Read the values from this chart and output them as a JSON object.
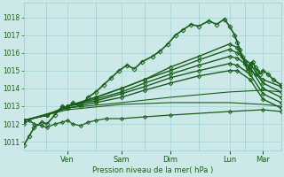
{
  "bg_color": "#cce8e8",
  "grid_color": "#99cccc",
  "line_color": "#1a5c1a",
  "marker_color": "#1a5c1a",
  "ylabel": "Pression niveau de la mer( hPa )",
  "ylim": [
    1010.5,
    1018.8
  ],
  "yticks": [
    1011,
    1012,
    1013,
    1014,
    1015,
    1016,
    1017,
    1018
  ],
  "day_labels": [
    "Ven",
    "Sam",
    "Dim",
    "Lun",
    "Mar"
  ],
  "day_positions": [
    0.17,
    0.38,
    0.57,
    0.8,
    0.93
  ],
  "vlines": [
    0.085,
    0.28,
    0.47,
    0.68,
    0.86
  ],
  "series": [
    {
      "x": [
        0.0,
        0.02,
        0.04,
        0.07,
        0.09,
        0.12,
        0.15,
        0.17,
        0.19,
        0.22,
        0.25,
        0.28,
        0.31,
        0.34,
        0.37,
        0.4,
        0.43,
        0.46,
        0.5,
        0.53,
        0.56,
        0.59,
        0.62,
        0.65,
        0.68,
        0.72,
        0.75,
        0.78,
        0.8,
        0.82,
        0.83,
        0.84,
        0.85,
        0.86,
        0.87,
        0.88,
        0.89,
        0.9,
        0.91,
        0.92,
        0.93,
        0.95,
        0.97,
        1.0
      ],
      "y": [
        1010.8,
        1011.3,
        1011.8,
        1012.1,
        1012.0,
        1012.5,
        1013.0,
        1012.9,
        1013.2,
        1013.0,
        1013.5,
        1013.8,
        1014.2,
        1014.6,
        1015.0,
        1015.3,
        1015.1,
        1015.5,
        1015.8,
        1016.1,
        1016.5,
        1017.0,
        1017.3,
        1017.6,
        1017.5,
        1017.8,
        1017.6,
        1017.9,
        1017.5,
        1017.0,
        1016.6,
        1016.2,
        1015.8,
        1015.4,
        1015.0,
        1015.3,
        1015.5,
        1015.2,
        1015.0,
        1014.8,
        1015.0,
        1014.8,
        1014.5,
        1014.2
      ],
      "marker": "D",
      "lw": 1.2,
      "ms": 2.5
    },
    {
      "x": [
        0.0,
        0.09,
        0.17,
        0.28,
        0.38,
        0.47,
        0.57,
        0.68,
        0.8,
        0.83,
        0.86,
        0.88,
        0.9,
        0.93,
        1.0
      ],
      "y": [
        1012.2,
        1012.5,
        1013.0,
        1013.5,
        1014.0,
        1014.5,
        1015.2,
        1015.8,
        1016.5,
        1016.3,
        1015.5,
        1015.0,
        1014.8,
        1014.5,
        1014.1
      ],
      "marker": "D",
      "lw": 1.0,
      "ms": 2.2
    },
    {
      "x": [
        0.0,
        0.09,
        0.17,
        0.28,
        0.38,
        0.47,
        0.57,
        0.68,
        0.8,
        0.83,
        0.88,
        0.93,
        1.0
      ],
      "y": [
        1012.2,
        1012.5,
        1013.0,
        1013.5,
        1014.0,
        1014.5,
        1015.0,
        1015.6,
        1016.2,
        1016.0,
        1015.4,
        1014.3,
        1013.8
      ],
      "marker": "D",
      "lw": 1.0,
      "ms": 2.2
    },
    {
      "x": [
        0.0,
        0.09,
        0.17,
        0.28,
        0.38,
        0.47,
        0.57,
        0.68,
        0.8,
        0.83,
        0.88,
        0.93,
        1.0
      ],
      "y": [
        1012.2,
        1012.5,
        1013.0,
        1013.4,
        1013.8,
        1014.3,
        1014.8,
        1015.3,
        1015.8,
        1015.7,
        1015.2,
        1014.0,
        1013.5
      ],
      "marker": "D",
      "lw": 1.0,
      "ms": 2.2
    },
    {
      "x": [
        0.0,
        0.09,
        0.17,
        0.28,
        0.38,
        0.47,
        0.57,
        0.68,
        0.8,
        0.83,
        0.88,
        0.93,
        1.0
      ],
      "y": [
        1012.2,
        1012.5,
        1013.0,
        1013.3,
        1013.7,
        1014.1,
        1014.6,
        1015.0,
        1015.4,
        1015.3,
        1014.8,
        1013.7,
        1013.2
      ],
      "marker": "D",
      "lw": 1.0,
      "ms": 2.2
    },
    {
      "x": [
        0.0,
        0.09,
        0.17,
        0.28,
        0.38,
        0.47,
        0.57,
        0.68,
        0.8,
        0.83,
        0.88,
        0.93,
        1.0
      ],
      "y": [
        1012.2,
        1012.5,
        1012.9,
        1013.2,
        1013.5,
        1013.9,
        1014.3,
        1014.7,
        1015.0,
        1015.0,
        1014.5,
        1013.4,
        1012.9
      ],
      "marker": "D",
      "lw": 1.0,
      "ms": 2.2
    },
    {
      "x": [
        0.0,
        0.17,
        0.38,
        0.57,
        0.8,
        0.93,
        1.0
      ],
      "y": [
        1012.2,
        1012.8,
        1013.1,
        1013.2,
        1013.2,
        1013.1,
        1013.0
      ],
      "marker": null,
      "lw": 0.8,
      "ms": 0
    },
    {
      "x": [
        0.0,
        0.17,
        0.38,
        0.57,
        0.8,
        0.93,
        1.0
      ],
      "y": [
        1012.2,
        1012.9,
        1013.2,
        1013.5,
        1013.8,
        1013.9,
        1013.8
      ],
      "marker": null,
      "lw": 0.8,
      "ms": 0
    },
    {
      "x": [
        0.0,
        0.02,
        0.04,
        0.07,
        0.09,
        0.12,
        0.15,
        0.17,
        0.19,
        0.22,
        0.25,
        0.28,
        0.32,
        0.38,
        0.47,
        0.57,
        0.8,
        0.93,
        1.0
      ],
      "y": [
        1012.0,
        1012.2,
        1012.0,
        1011.9,
        1011.8,
        1012.0,
        1012.1,
        1012.2,
        1012.0,
        1011.9,
        1012.1,
        1012.2,
        1012.3,
        1012.3,
        1012.4,
        1012.5,
        1012.7,
        1012.8,
        1012.7
      ],
      "marker": "D",
      "lw": 0.9,
      "ms": 2.0
    }
  ]
}
